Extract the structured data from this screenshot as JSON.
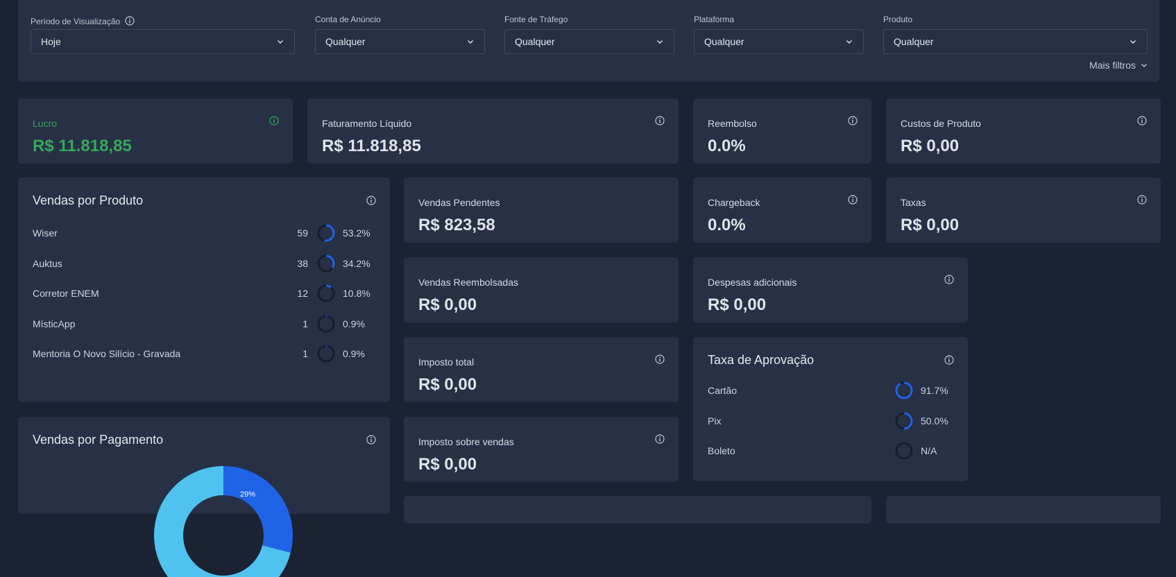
{
  "filters": {
    "periodo": {
      "label": "Período de Visualização",
      "value": "Hoje"
    },
    "conta": {
      "label": "Conta de Anúncio",
      "value": "Qualquer"
    },
    "fonte": {
      "label": "Fonte de Tráfego",
      "value": "Qualquer"
    },
    "plataforma": {
      "label": "Plataforma",
      "value": "Qualquer"
    },
    "produto": {
      "label": "Produto",
      "value": "Qualquer"
    },
    "more_label": "Mais filtros"
  },
  "cards": {
    "lucro": {
      "title": "Lucro",
      "value": "R$ 11.818,85"
    },
    "faturamento": {
      "title": "Faturamento Líquido",
      "value": "R$ 11.818,85"
    },
    "reembolso": {
      "title": "Reembolso",
      "value": "0.0%"
    },
    "custos": {
      "title": "Custos de Produto",
      "value": "R$ 0,00"
    },
    "pendentes": {
      "title": "Vendas Pendentes",
      "value": "R$ 823,58"
    },
    "chargeback": {
      "title": "Chargeback",
      "value": "0.0%"
    },
    "taxas": {
      "title": "Taxas",
      "value": "R$ 0,00"
    },
    "reembolsadas": {
      "title": "Vendas Reembolsadas",
      "value": "R$ 0,00"
    },
    "despesas": {
      "title": "Despesas adicionais",
      "value": "R$ 0,00"
    },
    "imposto_total": {
      "title": "Imposto total",
      "value": "R$ 0,00"
    },
    "imposto_vendas": {
      "title": "Imposto sobre vendas",
      "value": "R$ 0,00"
    }
  },
  "vendas_produto": {
    "title": "Vendas por Produto",
    "items": [
      {
        "name": "Wiser",
        "count": "59",
        "pct": "53.2%",
        "fraction": 0.532
      },
      {
        "name": "Auktus",
        "count": "38",
        "pct": "34.2%",
        "fraction": 0.342
      },
      {
        "name": "Corretor ENEM",
        "count": "12",
        "pct": "10.8%",
        "fraction": 0.108
      },
      {
        "name": "MísticApp",
        "count": "1",
        "pct": "0.9%",
        "fraction": 0.009
      },
      {
        "name": "Mentoria O Novo Silício - Gravada",
        "count": "1",
        "pct": "0.9%",
        "fraction": 0.009
      }
    ]
  },
  "aprovacao": {
    "title": "Taxa de Aprovação",
    "items": [
      {
        "name": "Cartão",
        "pct": "91.7%",
        "fraction": 0.917
      },
      {
        "name": "Pix",
        "pct": "50.0%",
        "fraction": 0.5
      },
      {
        "name": "Boleto",
        "pct": "N/A",
        "fraction": 0
      }
    ]
  },
  "vendas_pagamento": {
    "title": "Vendas por Pagamento",
    "slice_label": "29%",
    "slice_fraction": 0.29
  },
  "colors": {
    "background": "#1b2233",
    "card": "#273045",
    "accent_blue": "#1f63e6",
    "light_blue": "#4fc2ef",
    "ring_track": "#171d2b",
    "profit_green": "#35a85a"
  },
  "icons": {
    "info": "info-icon",
    "chevron": "chevron-down-icon"
  }
}
